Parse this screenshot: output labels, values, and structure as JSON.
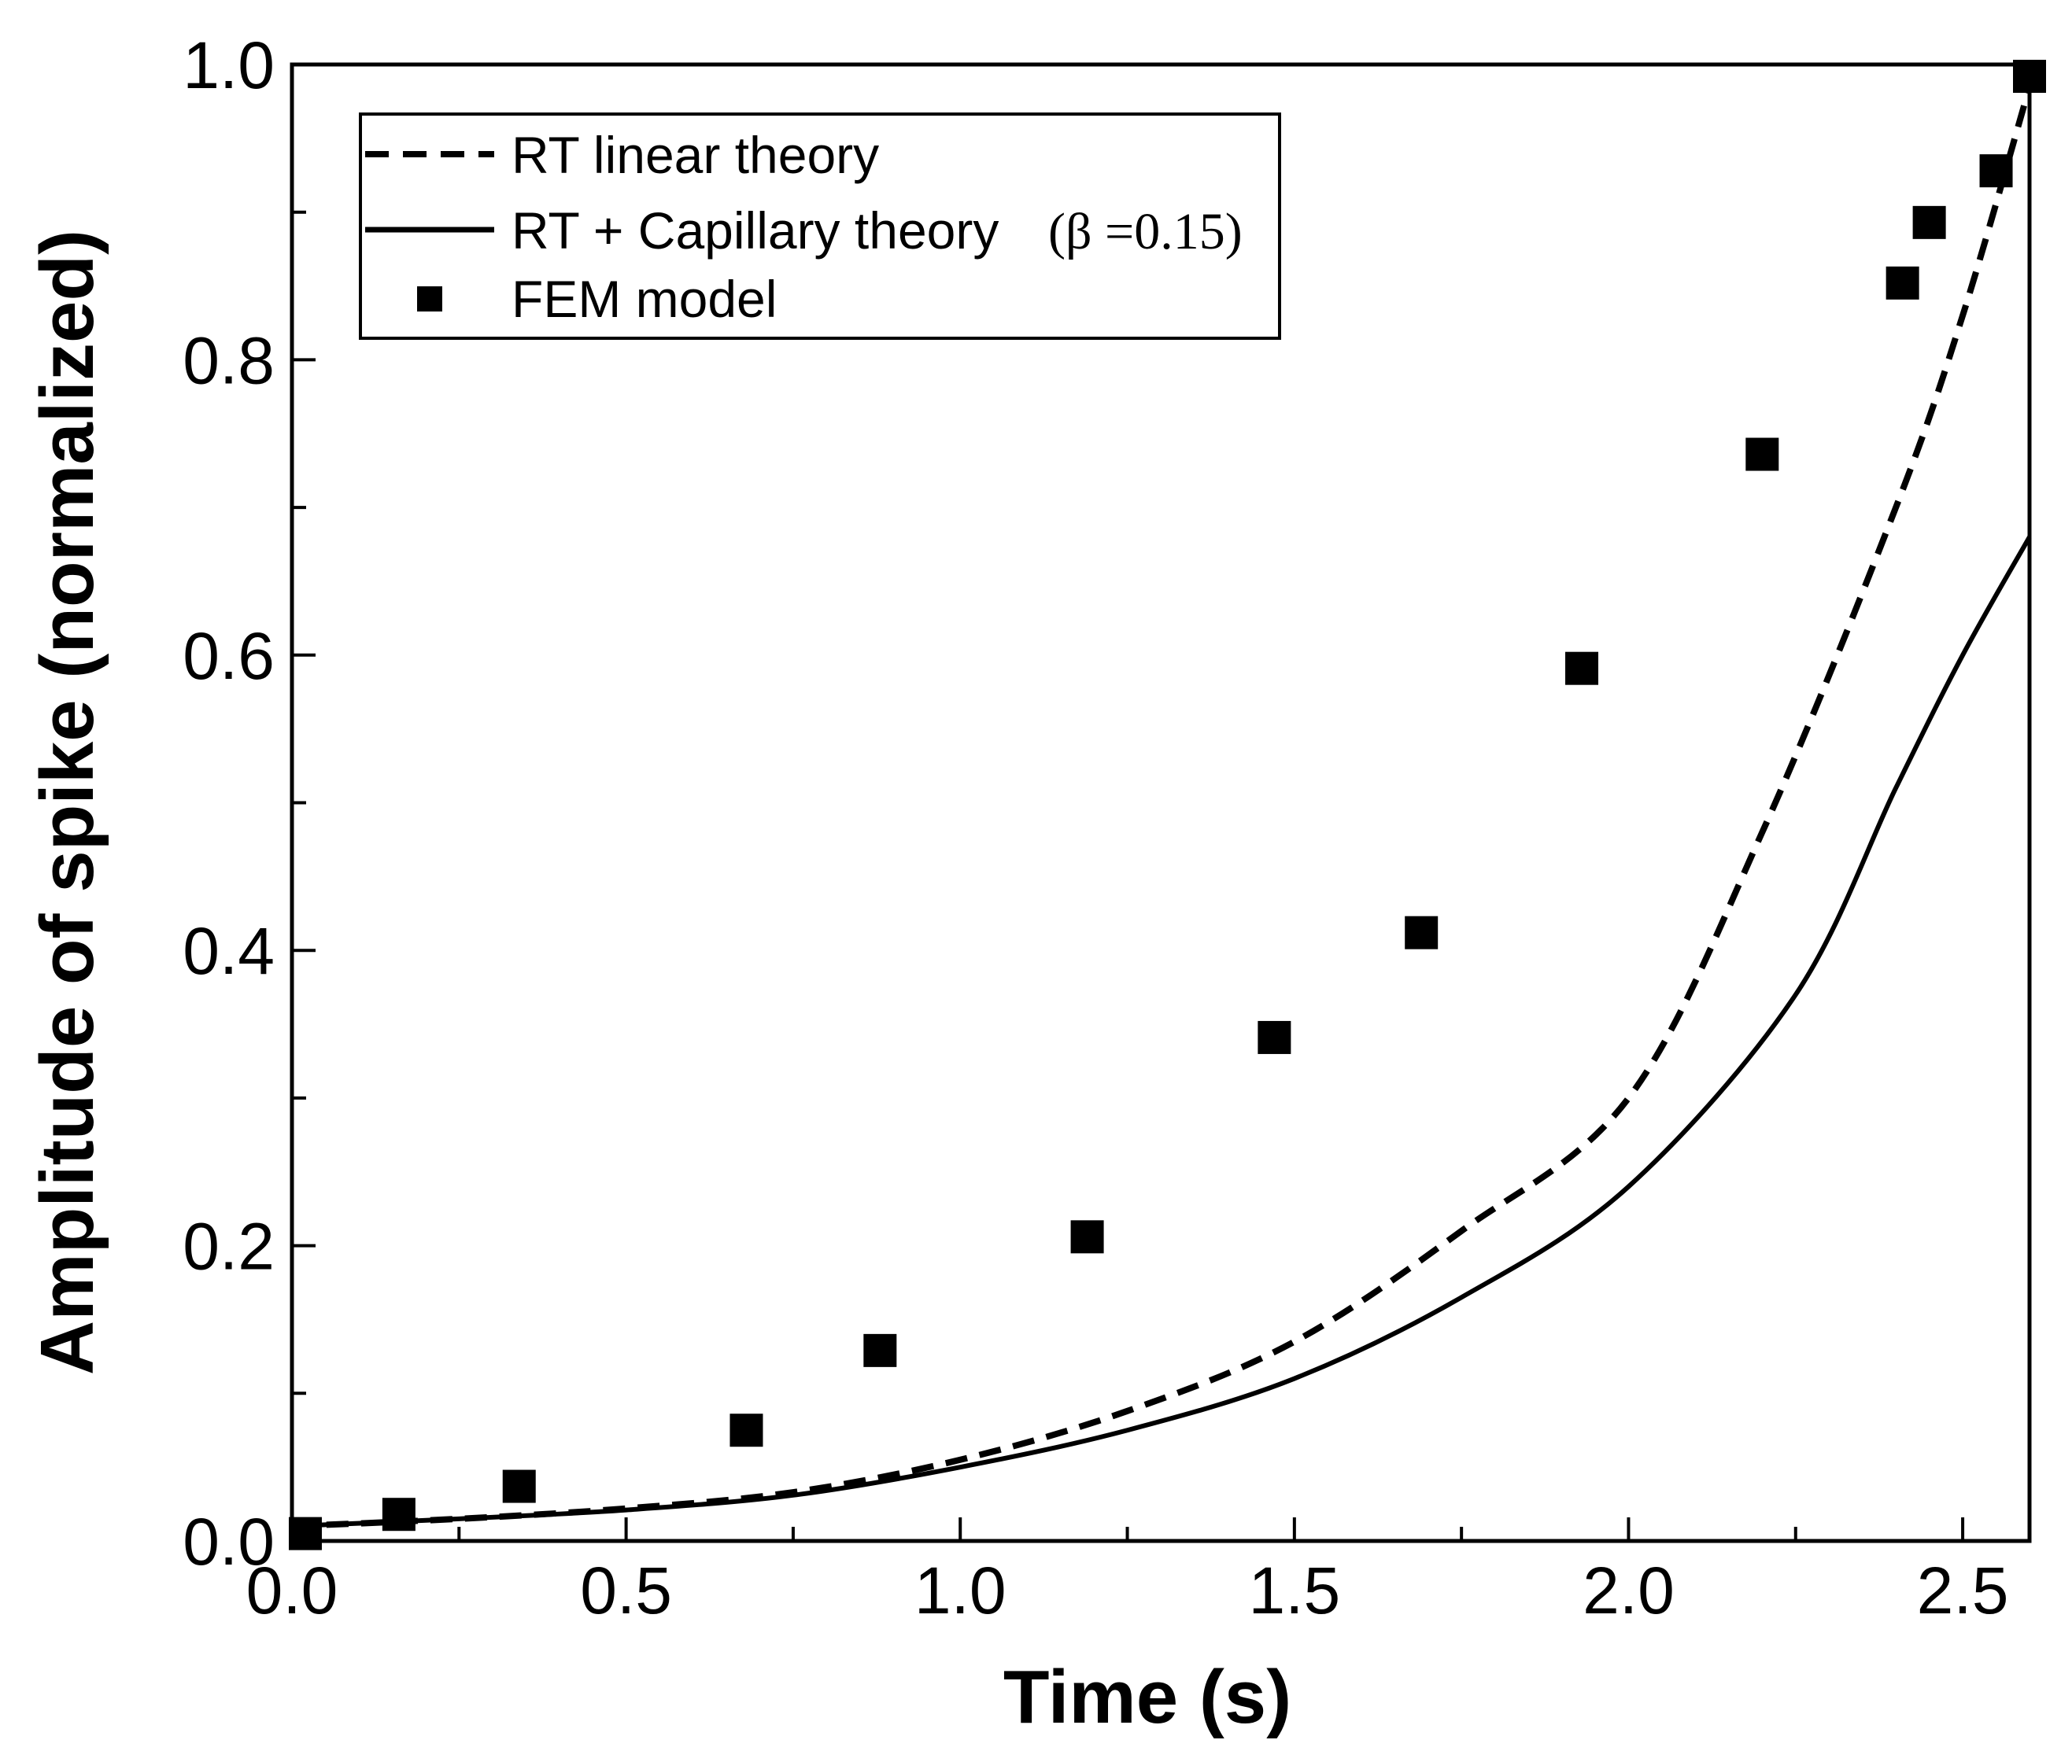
{
  "chart_data": {
    "type": "line",
    "title": "",
    "xlabel": "Time (s)",
    "ylabel": "Amplitude of spike (normalized)",
    "xlim": [
      0.0,
      2.6
    ],
    "ylim": [
      0.0,
      1.0
    ],
    "x_ticks": [
      0.0,
      0.5,
      1.0,
      1.5,
      2.0,
      2.5
    ],
    "x_tick_labels": [
      "0.0",
      "0.5",
      "1.0",
      "1.5",
      "2.0",
      "2.5"
    ],
    "y_ticks": [
      0.0,
      0.2,
      0.4,
      0.6,
      0.8,
      1.0
    ],
    "y_tick_labels": [
      "0.0",
      "0.2",
      "0.4",
      "0.6",
      "0.8",
      "1.0"
    ],
    "grid": false,
    "legend_position": "top-left",
    "series": [
      {
        "name": "RT linear theory",
        "style": "dashed",
        "x": [
          0.0,
          0.25,
          0.5,
          0.75,
          1.0,
          1.25,
          1.5,
          1.75,
          2.0,
          2.2,
          2.4,
          2.5,
          2.6
        ],
        "y": [
          0.01,
          0.015,
          0.022,
          0.033,
          0.055,
          0.088,
          0.135,
          0.21,
          0.3,
          0.48,
          0.7,
          0.83,
          0.985
        ]
      },
      {
        "name": "RT + Capillary theory (β =0.15)",
        "name_main": "RT + Capillary theory",
        "name_param": "(β =0.15)",
        "style": "solid",
        "x": [
          0.0,
          0.25,
          0.5,
          0.75,
          1.0,
          1.25,
          1.5,
          1.75,
          2.0,
          2.25,
          2.4,
          2.5,
          2.6
        ],
        "y": [
          0.01,
          0.015,
          0.021,
          0.031,
          0.05,
          0.075,
          0.11,
          0.165,
          0.24,
          0.37,
          0.51,
          0.6,
          0.68
        ]
      },
      {
        "name": "FEM model",
        "style": "markers",
        "x": [
          0.02,
          0.16,
          0.34,
          0.68,
          0.88,
          1.19,
          1.47,
          1.69,
          1.93,
          2.2,
          2.41,
          2.45,
          2.55,
          2.6
        ],
        "y": [
          0.005,
          0.018,
          0.037,
          0.075,
          0.129,
          0.206,
          0.341,
          0.412,
          0.591,
          0.736,
          0.852,
          0.893,
          0.928,
          0.992
        ]
      }
    ]
  },
  "colors": {
    "line": "#000000",
    "marker": "#000000",
    "background": "#ffffff"
  }
}
